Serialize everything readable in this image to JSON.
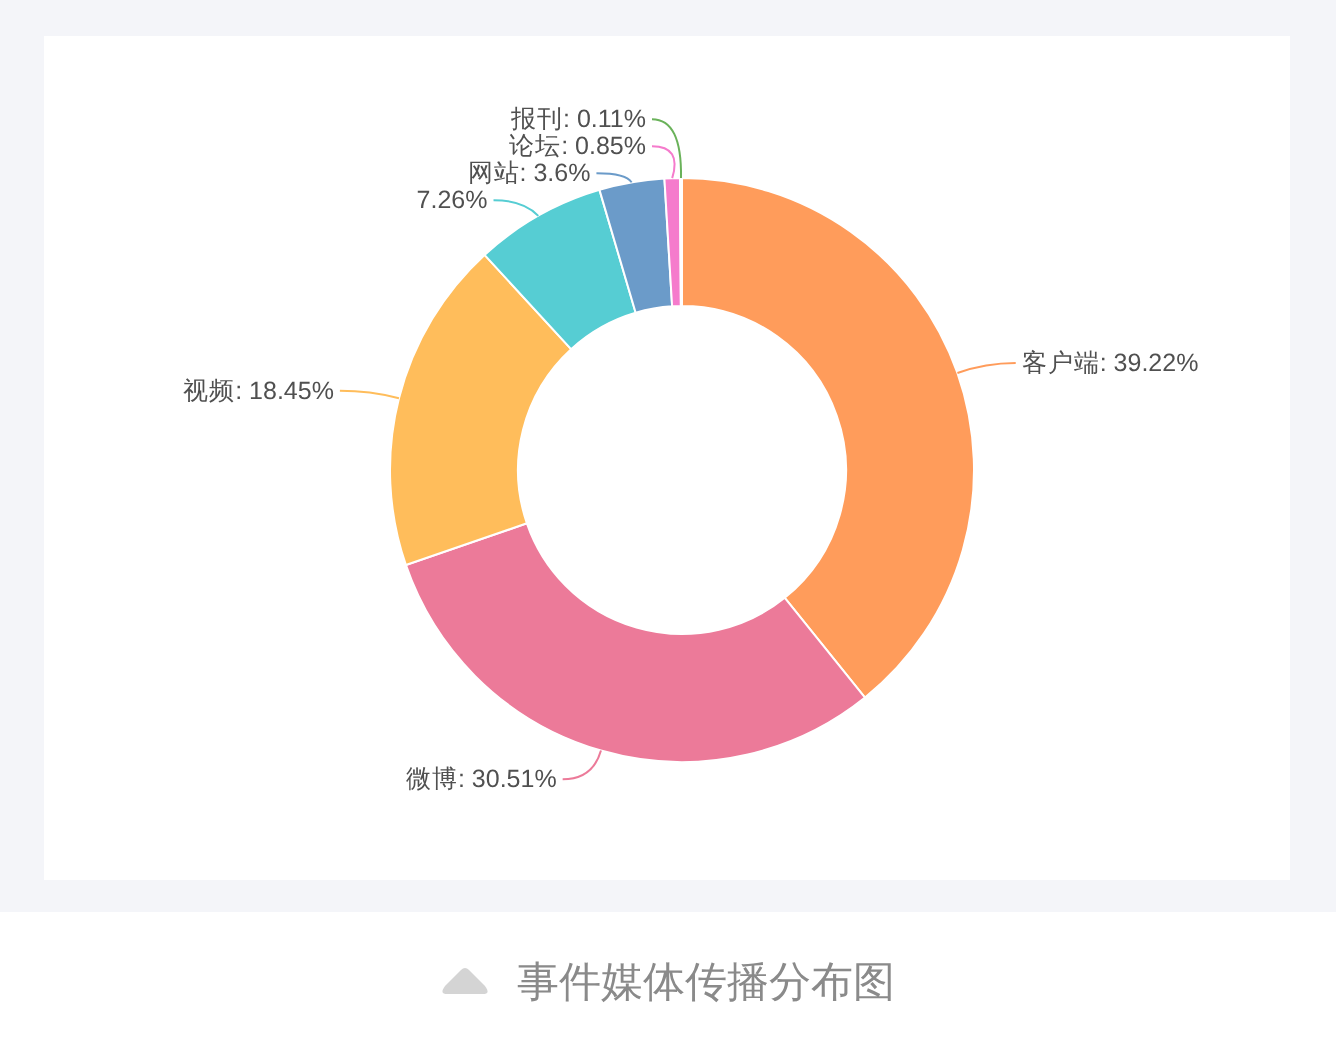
{
  "chart_data": {
    "type": "donut",
    "categories": [
      "客户端",
      "微博",
      "视频",
      null,
      "网站",
      "论坛",
      "报刊"
    ],
    "values": [
      39.22,
      30.51,
      18.45,
      7.26,
      3.6,
      0.85,
      0.11
    ],
    "colors": [
      "#ff9c5b",
      "#ec7a99",
      "#ffbd5b",
      "#56cdd3",
      "#6b9bc9",
      "#f57bcc",
      "#6ab25a"
    ],
    "value_labels": [
      "39.22%",
      "30.51%",
      "18.45%",
      "7.26%",
      "3.6%",
      "0.85%",
      "0.11%"
    ],
    "annotations": [
      "事件媒体传播分布图"
    ]
  }
}
